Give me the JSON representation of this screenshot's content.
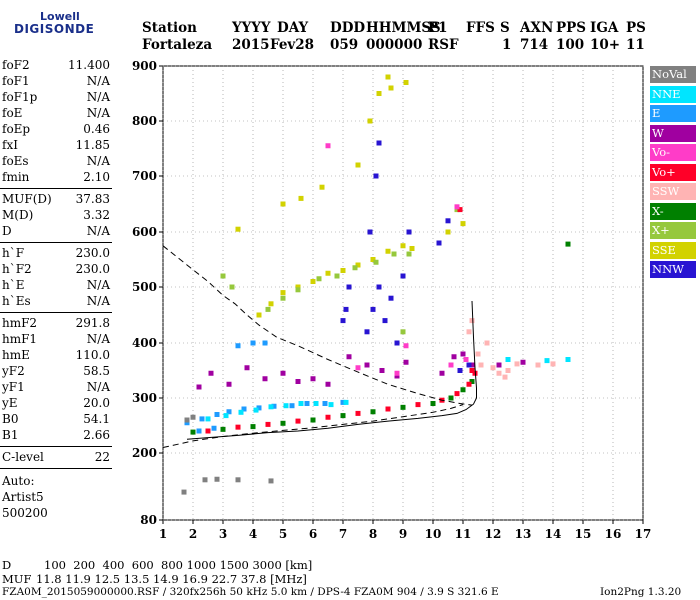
{
  "logo": {
    "top": "Lowell",
    "bottom": "DIGISONDE"
  },
  "header": {
    "row1": [
      "Station",
      "YYYY",
      "DAY",
      "DDD",
      "HHMMSS",
      "P1",
      "FFS",
      "S",
      "AXN",
      "PPS",
      "IGA",
      "PS"
    ],
    "row2": [
      "Fortaleza",
      "2015",
      "Fev28",
      "059",
      "000000",
      "RSF",
      "1",
      "714",
      "100",
      "10+",
      "11"
    ]
  },
  "params_group1": [
    {
      "label": "foF2",
      "value": "11.400"
    },
    {
      "label": "foF1",
      "value": "N/A"
    },
    {
      "label": "foF1p",
      "value": "N/A"
    },
    {
      "label": "foE",
      "value": "N/A"
    },
    {
      "label": "foEp",
      "value": "0.46"
    },
    {
      "label": "fxI",
      "value": "11.85"
    },
    {
      "label": "foEs",
      "value": "N/A"
    },
    {
      "label": "fmin",
      "value": "2.10"
    }
  ],
  "params_group2": [
    {
      "label": "MUF(D)",
      "value": "37.83"
    },
    {
      "label": "M(D)",
      "value": "3.32"
    },
    {
      "label": "D",
      "value": "N/A"
    }
  ],
  "params_group3": [
    {
      "label": "h`F",
      "value": "230.0"
    },
    {
      "label": "h`F2",
      "value": "230.0"
    },
    {
      "label": "h`E",
      "value": "N/A"
    },
    {
      "label": "h`Es",
      "value": "N/A"
    }
  ],
  "params_group4": [
    {
      "label": "hmF2",
      "value": "291.8"
    },
    {
      "label": "hmF1",
      "value": "N/A"
    },
    {
      "label": "hmE",
      "value": "110.0"
    },
    {
      "label": "yF2",
      "value": "58.5"
    },
    {
      "label": "yF1",
      "value": "N/A"
    },
    {
      "label": "yE",
      "value": "20.0"
    },
    {
      "label": "B0",
      "value": "54.1"
    },
    {
      "label": "B1",
      "value": "2.66"
    }
  ],
  "params_group5": [
    {
      "label": "C-level",
      "value": "22"
    }
  ],
  "autoscale": {
    "line1": "Auto:",
    "line2": "Artist5",
    "line3": "500200"
  },
  "legend": [
    {
      "label": "NoVal",
      "color": "#808080"
    },
    {
      "label": "NNE",
      "color": "#00e5ff"
    },
    {
      "label": "E",
      "color": "#1e9bff"
    },
    {
      "label": "W",
      "color": "#a000a0"
    },
    {
      "label": "Vo-",
      "color": "#ff3cc8"
    },
    {
      "label": "Vo+",
      "color": "#ff0028"
    },
    {
      "label": "SSW",
      "color": "#ffb4b4"
    },
    {
      "label": "X-",
      "color": "#008000"
    },
    {
      "label": "X+",
      "color": "#96c83c"
    },
    {
      "label": "SSE",
      "color": "#d2d200"
    },
    {
      "label": "NNW",
      "color": "#2814d2"
    }
  ],
  "footer": {
    "d_label": "D",
    "d_values": "100  200  400  600  800 1000 1500 3000 [km]",
    "muf_label": "MUF",
    "muf_values": "11.8 11.9 12.5 13.5 14.9 16.9 22.7 37.8 [MHz]",
    "file_info": "FZA0M_2015059000000.RSF / 320fx256h 50 kHz 5.0 km / DPS-4 FZA0M 904 / 3.9 S 321.6 E",
    "version": "Ion2Png 1.3.20"
  },
  "chart_data": {
    "type": "scatter",
    "x_ticks": [
      "1",
      "2",
      "3",
      "4",
      "5",
      "6",
      "7",
      "8",
      "9",
      "10",
      "11",
      "12",
      "13",
      "14",
      "15",
      "16",
      "17"
    ],
    "y_ticks": [
      "80",
      "200",
      "300",
      "400",
      "500",
      "600",
      "700",
      "800",
      "900"
    ],
    "xlim": [
      1,
      17
    ],
    "y_axis_nonlinear": true,
    "series": [
      {
        "name": "E",
        "color": "#1e9bff",
        "points": [
          [
            1.8,
            255
          ],
          [
            2.3,
            262
          ],
          [
            2.8,
            270
          ],
          [
            3.2,
            275
          ],
          [
            3.7,
            280
          ],
          [
            4.2,
            282
          ],
          [
            4.7,
            285
          ],
          [
            5.3,
            286
          ],
          [
            5.8,
            290
          ],
          [
            6.4,
            290
          ],
          [
            7.0,
            292
          ],
          [
            3.5,
            395
          ],
          [
            4.0,
            400
          ],
          [
            4.4,
            400
          ],
          [
            2.2,
            240
          ],
          [
            2.7,
            245
          ]
        ]
      },
      {
        "name": "NNE",
        "color": "#00e5ff",
        "points": [
          [
            2.5,
            262
          ],
          [
            3.1,
            268
          ],
          [
            3.6,
            274
          ],
          [
            4.1,
            278
          ],
          [
            4.6,
            284
          ],
          [
            5.1,
            286
          ],
          [
            5.6,
            290
          ],
          [
            6.1,
            290
          ],
          [
            6.6,
            288
          ],
          [
            7.1,
            292
          ],
          [
            12.5,
            370
          ],
          [
            13.8,
            368
          ],
          [
            14.5,
            370
          ]
        ]
      },
      {
        "name": "W",
        "color": "#a000a0",
        "points": [
          [
            2.2,
            320
          ],
          [
            2.6,
            345
          ],
          [
            3.2,
            325
          ],
          [
            3.8,
            355
          ],
          [
            4.4,
            335
          ],
          [
            5.0,
            345
          ],
          [
            5.5,
            330
          ],
          [
            6.0,
            335
          ],
          [
            6.5,
            325
          ],
          [
            7.2,
            375
          ],
          [
            7.8,
            360
          ],
          [
            8.3,
            350
          ],
          [
            8.8,
            340
          ],
          [
            9.1,
            365
          ],
          [
            10.3,
            345
          ],
          [
            10.7,
            375
          ],
          [
            11.0,
            380
          ],
          [
            11.3,
            360
          ],
          [
            12.2,
            360
          ],
          [
            13.0,
            365
          ]
        ]
      },
      {
        "name": "NNW",
        "color": "#2814d2",
        "points": [
          [
            7.0,
            440
          ],
          [
            7.1,
            460
          ],
          [
            7.2,
            500
          ],
          [
            7.8,
            420
          ],
          [
            8.0,
            460
          ],
          [
            8.2,
            500
          ],
          [
            8.4,
            440
          ],
          [
            8.6,
            480
          ],
          [
            8.8,
            400
          ],
          [
            9.0,
            520
          ],
          [
            7.9,
            600
          ],
          [
            8.1,
            700
          ],
          [
            8.2,
            760
          ],
          [
            9.2,
            600
          ],
          [
            10.5,
            620
          ],
          [
            10.9,
            350
          ],
          [
            11.2,
            360
          ],
          [
            10.2,
            580
          ]
        ]
      },
      {
        "name": "SSE",
        "color": "#d2d200",
        "points": [
          [
            4.2,
            450
          ],
          [
            4.6,
            470
          ],
          [
            5.0,
            490
          ],
          [
            5.5,
            500
          ],
          [
            6.0,
            510
          ],
          [
            6.5,
            525
          ],
          [
            7.0,
            530
          ],
          [
            7.5,
            540
          ],
          [
            8.0,
            550
          ],
          [
            8.5,
            565
          ],
          [
            9.0,
            575
          ],
          [
            9.3,
            570
          ],
          [
            10.5,
            600
          ],
          [
            11.0,
            615
          ],
          [
            5.0,
            650
          ],
          [
            5.6,
            660
          ],
          [
            6.3,
            680
          ],
          [
            7.5,
            720
          ],
          [
            7.9,
            800
          ],
          [
            8.2,
            850
          ],
          [
            8.6,
            860
          ],
          [
            9.1,
            870
          ],
          [
            8.5,
            880
          ],
          [
            3.5,
            605
          ]
        ]
      },
      {
        "name": "X+",
        "color": "#96c83c",
        "points": [
          [
            4.5,
            460
          ],
          [
            5.0,
            480
          ],
          [
            5.5,
            495
          ],
          [
            6.2,
            515
          ],
          [
            6.8,
            520
          ],
          [
            7.4,
            535
          ],
          [
            8.1,
            545
          ],
          [
            8.7,
            560
          ],
          [
            9.2,
            560
          ],
          [
            10.8,
            640
          ],
          [
            3.0,
            520
          ],
          [
            3.3,
            500
          ],
          [
            9.0,
            420
          ]
        ]
      },
      {
        "name": "X-",
        "color": "#008000",
        "points": [
          [
            2.0,
            238
          ],
          [
            3.0,
            243
          ],
          [
            4.0,
            248
          ],
          [
            5.0,
            254
          ],
          [
            6.0,
            260
          ],
          [
            7.0,
            268
          ],
          [
            8.0,
            275
          ],
          [
            9.0,
            283
          ],
          [
            10.0,
            290
          ],
          [
            10.6,
            300
          ],
          [
            11.0,
            315
          ],
          [
            11.3,
            330
          ],
          [
            14.5,
            578
          ]
        ]
      },
      {
        "name": "Vo+",
        "color": "#ff0028",
        "points": [
          [
            2.5,
            240
          ],
          [
            3.5,
            247
          ],
          [
            4.5,
            252
          ],
          [
            5.5,
            258
          ],
          [
            6.5,
            265
          ],
          [
            7.5,
            272
          ],
          [
            8.5,
            280
          ],
          [
            9.5,
            288
          ],
          [
            10.3,
            296
          ],
          [
            10.8,
            308
          ],
          [
            11.2,
            325
          ],
          [
            11.4,
            345
          ],
          [
            10.9,
            640
          ],
          [
            11.3,
            350
          ]
        ]
      },
      {
        "name": "Vo-",
        "color": "#ff3cc8",
        "points": [
          [
            8.8,
            345
          ],
          [
            9.1,
            395
          ],
          [
            7.5,
            355
          ],
          [
            10.8,
            645
          ],
          [
            6.5,
            755
          ],
          [
            10.6,
            360
          ],
          [
            11.1,
            370
          ]
        ]
      },
      {
        "name": "SSW",
        "color": "#ffb4b4",
        "points": [
          [
            11.5,
            380
          ],
          [
            11.6,
            360
          ],
          [
            12.0,
            355
          ],
          [
            12.2,
            345
          ],
          [
            12.5,
            350
          ],
          [
            12.8,
            362
          ],
          [
            11.8,
            400
          ],
          [
            12.4,
            338
          ],
          [
            13.5,
            360
          ],
          [
            14.0,
            362
          ],
          [
            11.2,
            420
          ],
          [
            11.3,
            440
          ]
        ]
      },
      {
        "name": "NoVal",
        "color": "#808080",
        "points": [
          [
            1.8,
            260
          ],
          [
            2.0,
            265
          ],
          [
            2.4,
            152
          ],
          [
            2.8,
            153
          ],
          [
            3.5,
            152
          ],
          [
            4.6,
            150
          ],
          [
            1.7,
            130
          ]
        ]
      }
    ],
    "curves": [
      {
        "name": "dashed-upper",
        "style": "dashed",
        "points": [
          [
            1.0,
            575
          ],
          [
            1.8,
            540
          ],
          [
            2.5,
            510
          ],
          [
            3.0,
            485
          ],
          [
            3.4,
            470
          ],
          [
            3.8,
            450
          ],
          [
            4.2,
            432
          ],
          [
            4.8,
            410
          ],
          [
            5.5,
            395
          ],
          [
            6.5,
            370
          ],
          [
            7.5,
            347
          ],
          [
            8.5,
            325
          ],
          [
            9.5,
            308
          ],
          [
            10.3,
            296
          ],
          [
            10.9,
            290
          ],
          [
            11.3,
            287
          ]
        ]
      },
      {
        "name": "dashed-lower",
        "style": "dashed",
        "points": [
          [
            1.0,
            210
          ],
          [
            2.0,
            222
          ],
          [
            3.0,
            230
          ],
          [
            4.0,
            236
          ],
          [
            5.0,
            241
          ],
          [
            6.0,
            246
          ],
          [
            7.0,
            252
          ],
          [
            8.0,
            258
          ],
          [
            9.0,
            266
          ],
          [
            10.0,
            274
          ],
          [
            10.6,
            281
          ],
          [
            11.0,
            288
          ]
        ]
      },
      {
        "name": "solid-profile",
        "style": "solid",
        "points": [
          [
            1.8,
            225
          ],
          [
            2.5,
            228
          ],
          [
            3.5,
            232
          ],
          [
            4.5,
            237
          ],
          [
            5.5,
            240
          ],
          [
            6.5,
            245
          ],
          [
            7.5,
            252
          ],
          [
            8.5,
            258
          ],
          [
            9.5,
            263
          ],
          [
            10.3,
            268
          ],
          [
            10.8,
            272
          ],
          [
            11.1,
            279
          ],
          [
            11.35,
            289
          ],
          [
            11.45,
            300
          ],
          [
            11.45,
            318
          ],
          [
            11.4,
            355
          ],
          [
            11.35,
            410
          ],
          [
            11.3,
            475
          ]
        ]
      }
    ]
  }
}
